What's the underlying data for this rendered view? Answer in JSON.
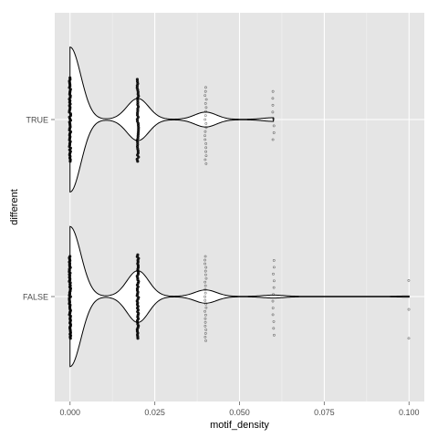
{
  "chart_data": {
    "type": "violin",
    "xlabel": "motif_density",
    "ylabel": "different",
    "xlim": [
      -0.0045,
      0.1045
    ],
    "x_ticks": [
      0.0,
      0.025,
      0.05,
      0.075,
      0.1
    ],
    "x_tick_labels": [
      "0.000",
      "0.025",
      "0.050",
      "0.075",
      "0.100"
    ],
    "categories": [
      "FALSE",
      "TRUE"
    ],
    "orientation": "horizontal",
    "grid": true,
    "background": "#e5e5e5",
    "grid_color": "#ffffff",
    "line_color": "#000000",
    "point_color": "#000000",
    "groups": [
      {
        "name": "TRUE",
        "x_max": 0.06,
        "density_peaks": [
          {
            "x": 0.0,
            "half_width": 0.9
          },
          {
            "x": 0.02,
            "half_width": 0.26
          },
          {
            "x": 0.04,
            "half_width": 0.09
          },
          {
            "x": 0.06,
            "half_width": 0.02
          }
        ],
        "point_columns": [
          {
            "x": 0.0,
            "spread": [
              -0.52,
              0.52
            ],
            "count": 52
          },
          {
            "x": 0.02,
            "spread": [
              -0.5,
              0.52
            ],
            "count": 40
          },
          {
            "x": 0.04,
            "spread": [
              -0.4,
              0.55
            ],
            "count": 20
          },
          {
            "x": 0.06,
            "spread": [
              -0.35,
              0.25
            ],
            "count": 8
          }
        ]
      },
      {
        "name": "FALSE",
        "x_max": 0.1,
        "density_peaks": [
          {
            "x": 0.0,
            "half_width": 0.87
          },
          {
            "x": 0.02,
            "half_width": 0.32
          },
          {
            "x": 0.04,
            "half_width": 0.08
          },
          {
            "x": 0.06,
            "half_width": 0.016
          },
          {
            "x": 0.1,
            "half_width": 0.005
          }
        ],
        "point_columns": [
          {
            "x": 0.0,
            "spread": [
              -0.5,
              0.52
            ],
            "count": 60
          },
          {
            "x": 0.02,
            "spread": [
              -0.52,
              0.52
            ],
            "count": 48
          },
          {
            "x": 0.04,
            "spread": [
              -0.5,
              0.55
            ],
            "count": 24
          },
          {
            "x": 0.06,
            "spread": [
              -0.45,
              0.48
            ],
            "count": 12
          },
          {
            "x": 0.1,
            "spread": [
              -0.2,
              0.52
            ],
            "count": 3
          }
        ]
      }
    ]
  }
}
